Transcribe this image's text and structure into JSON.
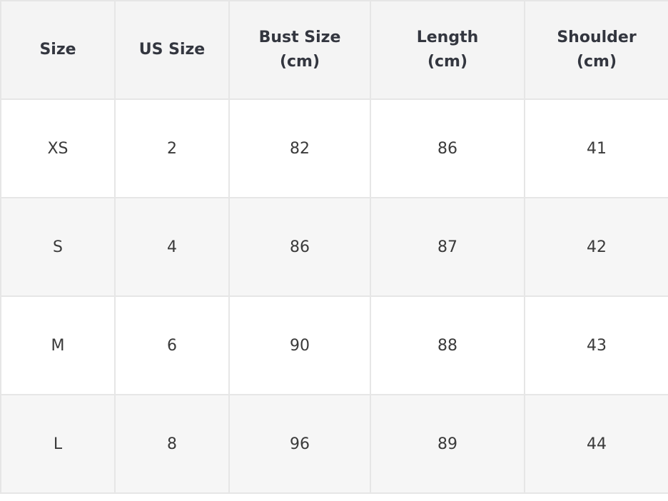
{
  "table": {
    "headers": [
      [
        "Size"
      ],
      [
        "US Size"
      ],
      [
        "Bust Size",
        "(cm)"
      ],
      [
        "Length",
        "(cm)"
      ],
      [
        "Shoulder",
        "(cm)"
      ]
    ],
    "rows": [
      [
        "XS",
        "2",
        "82",
        "86",
        "41"
      ],
      [
        "S",
        "4",
        "86",
        "87",
        "42"
      ],
      [
        "M",
        "6",
        "90",
        "88",
        "43"
      ],
      [
        "L",
        "8",
        "96",
        "89",
        "44"
      ]
    ]
  }
}
